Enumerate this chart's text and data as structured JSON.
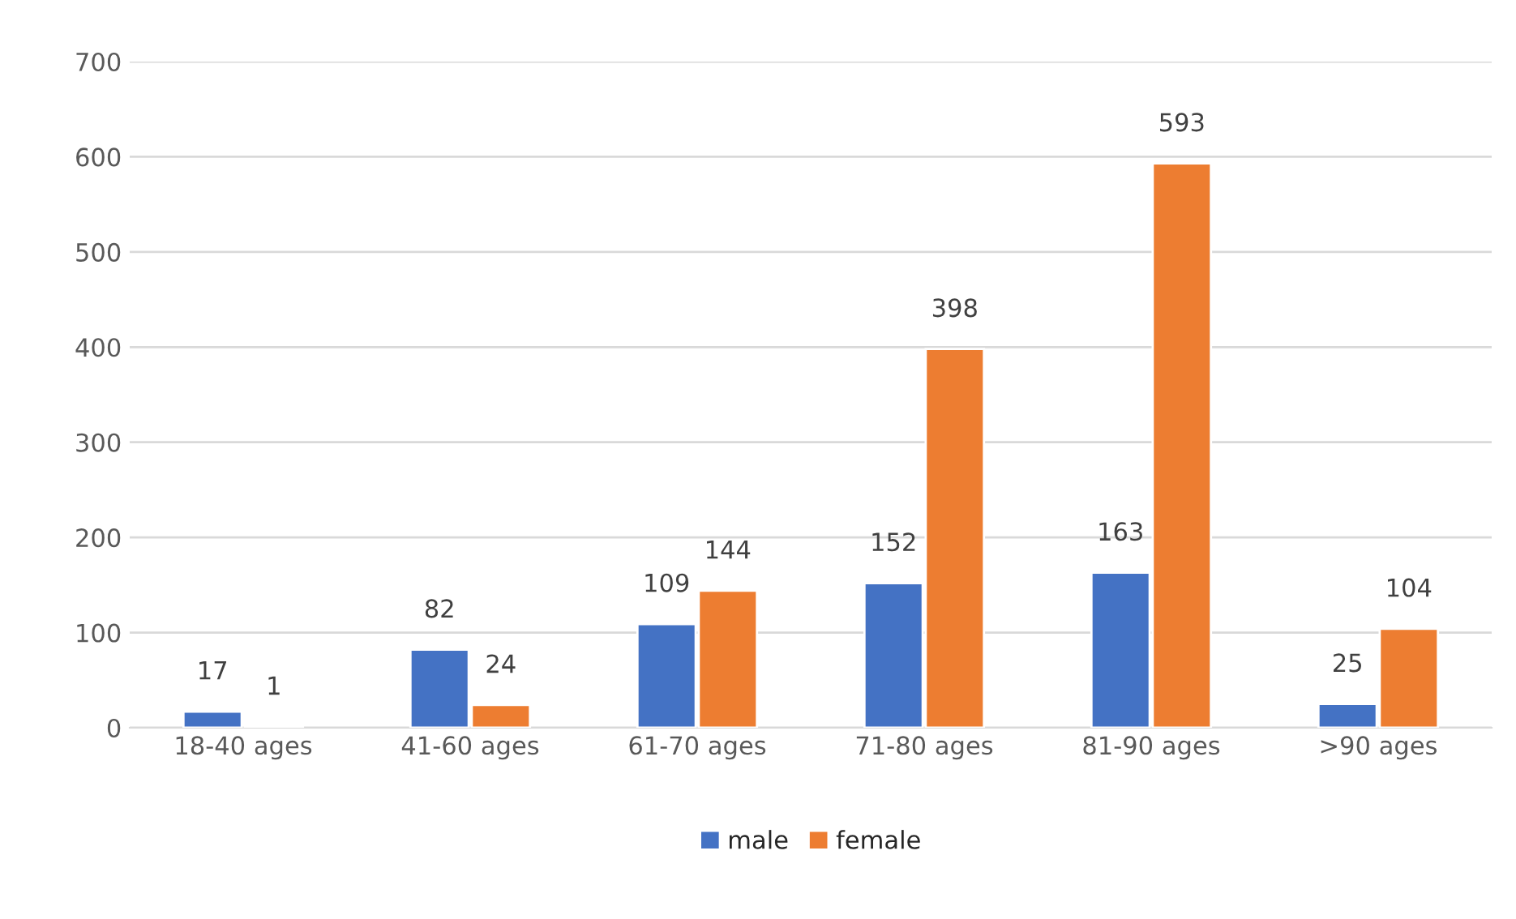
{
  "chart_data": {
    "type": "bar",
    "categories": [
      "18-40 ages",
      "41-60 ages",
      "61-70 ages",
      "71-80 ages",
      "81-90 ages",
      ">90 ages"
    ],
    "series": [
      {
        "name": "male",
        "color": "#4472c4",
        "values": [
          17,
          82,
          109,
          152,
          163,
          25
        ]
      },
      {
        "name": "female",
        "color": "#ed7d31",
        "values": [
          1,
          24,
          144,
          398,
          593,
          104
        ]
      }
    ],
    "ylim": [
      0,
      700
    ],
    "yticks": [
      0,
      100,
      200,
      300,
      400,
      500,
      600,
      700
    ],
    "grid": "y",
    "legend": "bottom",
    "data_labels": true
  }
}
